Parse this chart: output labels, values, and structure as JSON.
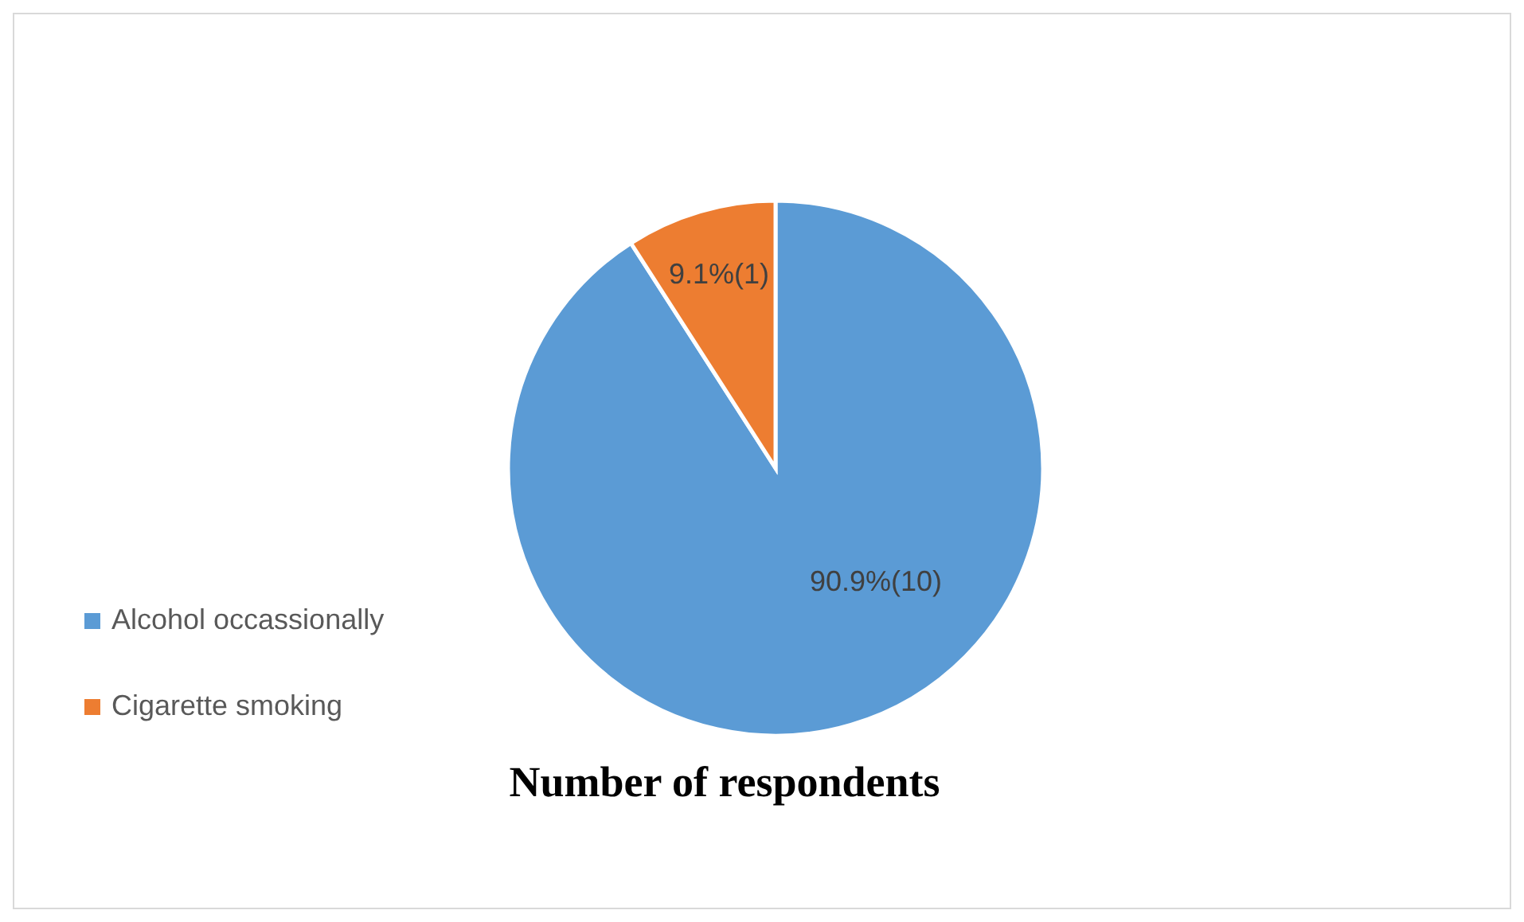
{
  "chart_data": {
    "type": "pie",
    "title": "Number of respondents",
    "categories": [
      "Alcohol occassionally",
      "Cigarette smoking"
    ],
    "values": [
      10,
      1
    ],
    "value_labels": [
      "90.9%(10)",
      "9.1%(1)"
    ],
    "colors": [
      "#5b9bd5",
      "#ed7d31"
    ],
    "legend": "left"
  }
}
